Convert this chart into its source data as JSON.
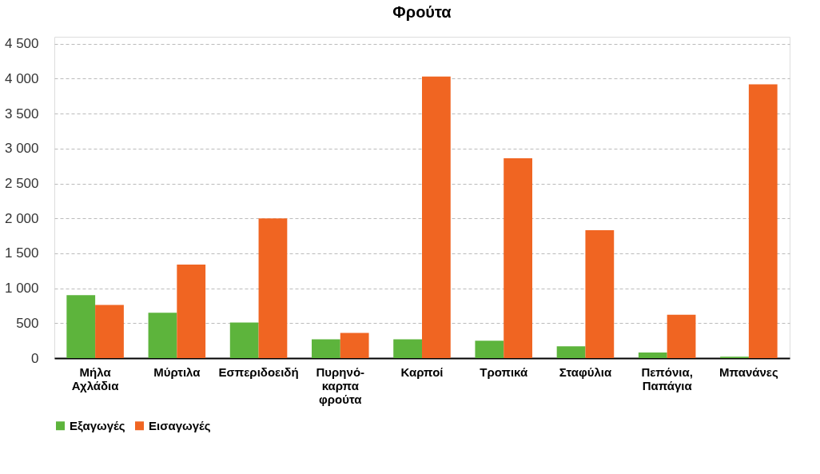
{
  "chart_data": {
    "type": "bar",
    "title": "Φρούτα",
    "categories": [
      "Μήλα Αχλάδια",
      "Μύρτιλα",
      "Εσπεριδοειδή",
      "Πυρηνό-καρπα φρούτα",
      "Καρποί",
      "Τροπικά",
      "Σταφύλια",
      "Πεπόνια, Παπάγια",
      "Μπανάνες"
    ],
    "series": [
      {
        "name": "Εξαγωγές",
        "color": "#5db43c",
        "values": [
          900,
          650,
          510,
          270,
          270,
          250,
          170,
          80,
          20
        ]
      },
      {
        "name": "Εισαγωγές",
        "color": "#f06522",
        "values": [
          760,
          1340,
          2000,
          360,
          4030,
          2860,
          1830,
          620,
          3920
        ]
      }
    ],
    "ylim": [
      0,
      4600
    ],
    "yticks": [
      0,
      500,
      {
        "value": 1000,
        "label": "1 000"
      },
      {
        "value": 1500,
        "label": "1 500"
      },
      {
        "value": 2000,
        "label": "2 000"
      },
      {
        "value": 2500,
        "label": "2 500"
      },
      {
        "value": 3000,
        "label": "3 000"
      },
      {
        "value": 3500,
        "label": "3 500"
      },
      {
        "value": 4000,
        "label": "4 000"
      },
      {
        "value": 4500,
        "label": "4 500"
      }
    ],
    "grid": "y",
    "legend": "bottom"
  }
}
